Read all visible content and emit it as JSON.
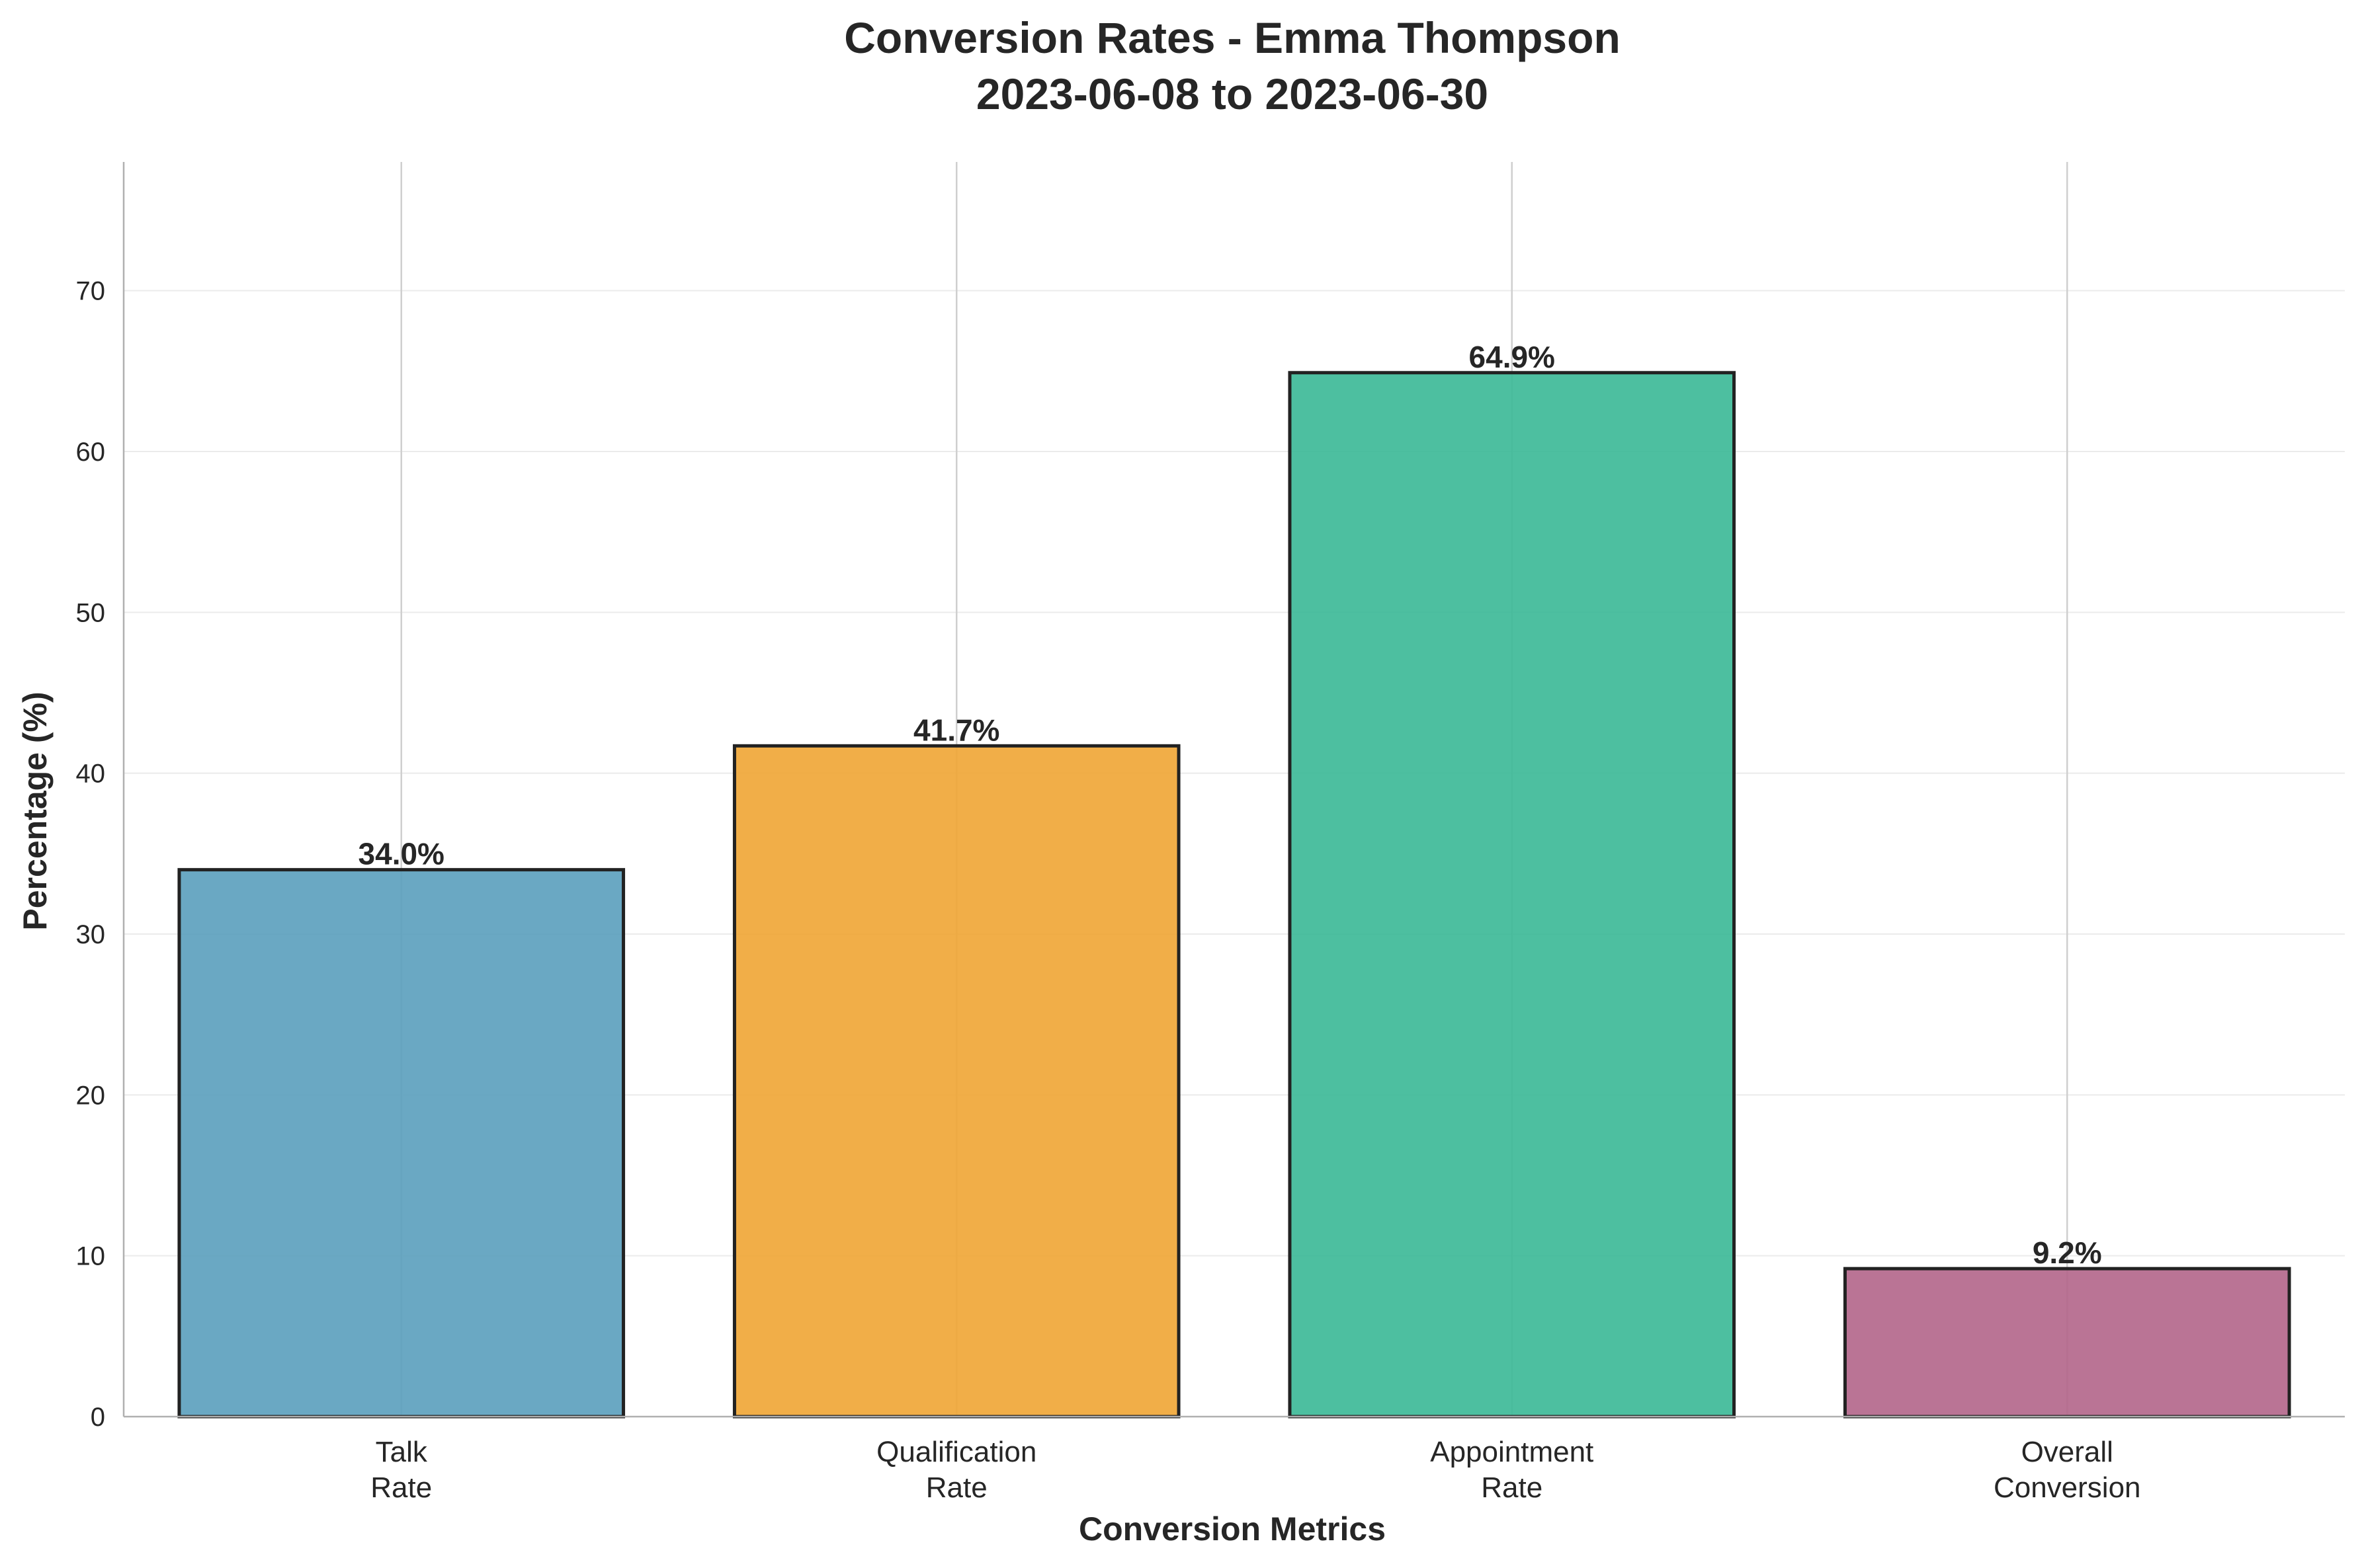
{
  "chart_data": {
    "type": "bar",
    "title": "Conversion Rates - Emma Thompson",
    "subtitle": "2023-06-08 to 2023-06-30",
    "xlabel": "Conversion Metrics",
    "ylabel": "Percentage (%)",
    "categories": [
      [
        "Talk",
        "Rate"
      ],
      [
        "Qualification",
        "Rate"
      ],
      [
        "Appointment",
        "Rate"
      ],
      [
        "Overall",
        "Conversion"
      ]
    ],
    "values": [
      34.0,
      41.7,
      64.9,
      9.2
    ],
    "value_labels": [
      "34.0%",
      "41.7%",
      "64.9%",
      "9.2%"
    ],
    "colors": [
      "#5a9ebd",
      "#f0a534",
      "#3ab896",
      "#b2658a"
    ],
    "ylim": [
      0,
      78
    ],
    "yticks": [
      0,
      10,
      20,
      30,
      40,
      50,
      60,
      70
    ],
    "grid": true,
    "legend": "none"
  }
}
